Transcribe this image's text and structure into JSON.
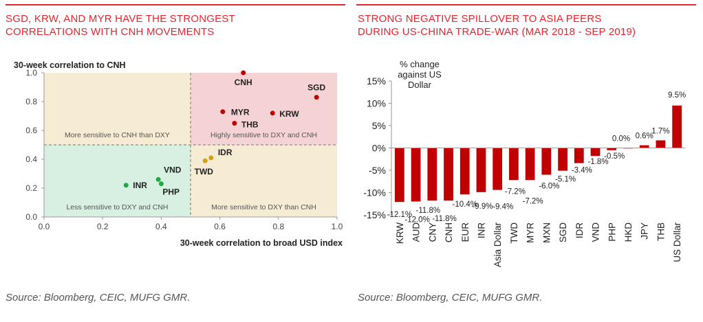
{
  "left": {
    "title_lines": [
      "SGD, KRW, AND MYR HAVE THE STRONGEST",
      "CORRELATIONS WITH CNH MOVEMENTS"
    ],
    "source": "Source: Bloomberg, CEIC, MUFG GMR."
  },
  "right": {
    "title_lines": [
      "STRONG NEGATIVE SPILLOVER TO ASIA PEERS",
      "DURING US-CHINA TRADE-WAR (MAR 2018 - SEP 2019)"
    ],
    "source": "Source: Bloomberg, CEIC, MUFG GMR."
  },
  "colors": {
    "accent": "#e3262d",
    "bar": "#c00000",
    "q_top_left": "#f6ebd3",
    "q_top_right": "#f5d3d4",
    "q_bottom_left": "#d7f0e1",
    "q_bottom_right": "#f6ebd3",
    "dot_red": "#c00000",
    "dot_green": "#22a845",
    "dot_gold": "#d4a017"
  },
  "chart_data": [
    {
      "type": "scatter",
      "ylabel": "30-week correlation to CNH",
      "xlabel": "30-week correlation to broad USD index",
      "xlim": [
        0,
        1
      ],
      "ylim": [
        0,
        1
      ],
      "x_ticks": [
        "0.0",
        "0.2",
        "0.4",
        "0.6",
        "0.8",
        "1.0"
      ],
      "y_ticks": [
        "0.0",
        "0.2",
        "0.4",
        "0.6",
        "0.8",
        "1.0"
      ],
      "threshold": 0.5,
      "quadrant_labels": {
        "top_left": "More sensitive to CNH than DXY",
        "top_right": "Highly sensitive to DXY and CNH",
        "bottom_left": "Less sensitive to DXY and CNH",
        "bottom_right": "More sensitive to DXY than CNH"
      },
      "points": [
        {
          "label": "CNH",
          "x": 0.68,
          "y": 1.0,
          "group": "red"
        },
        {
          "label": "SGD",
          "x": 0.93,
          "y": 0.83,
          "group": "red"
        },
        {
          "label": "MYR",
          "x": 0.61,
          "y": 0.73,
          "group": "red"
        },
        {
          "label": "KRW",
          "x": 0.78,
          "y": 0.72,
          "group": "red"
        },
        {
          "label": "THB",
          "x": 0.65,
          "y": 0.65,
          "group": "red"
        },
        {
          "label": "IDR",
          "x": 0.57,
          "y": 0.41,
          "group": "gold"
        },
        {
          "label": "TWD",
          "x": 0.55,
          "y": 0.39,
          "group": "gold"
        },
        {
          "label": "VND",
          "x": 0.39,
          "y": 0.26,
          "group": "green"
        },
        {
          "label": "INR",
          "x": 0.28,
          "y": 0.22,
          "group": "green"
        },
        {
          "label": "PHP",
          "x": 0.4,
          "y": 0.23,
          "group": "green"
        }
      ]
    },
    {
      "type": "bar",
      "ylabel": "% change against US Dollar",
      "ylabel_lines": [
        "% change",
        "against US",
        "Dollar"
      ],
      "ylim": [
        -15,
        15
      ],
      "y_ticks": [
        "15%",
        "10%",
        "5%",
        "0%",
        "-5%",
        "-10%",
        "-15%"
      ],
      "categories": [
        "KRW",
        "AUD",
        "CNY",
        "CNH",
        "EUR",
        "INR",
        "Asia Dollar",
        "TWD",
        "MYR",
        "MXN",
        "SGD",
        "IDR",
        "VND",
        "PHP",
        "HKD",
        "JPY",
        "THB",
        "US Dollar"
      ],
      "values": [
        -12.1,
        -12.0,
        -11.8,
        -11.8,
        -10.4,
        -9.9,
        -9.4,
        -7.2,
        -7.2,
        -6.0,
        -5.1,
        -3.4,
        -1.8,
        -0.5,
        0.0,
        0.6,
        1.7,
        9.5
      ],
      "value_labels": [
        "-12.1%",
        "-12.0%",
        "-11.8%",
        "-11.8%",
        "-10.4%",
        "-9.9%",
        "-9.4%",
        "-7.2%",
        "-7.2%",
        "-6.0%",
        "-5.1%",
        "-3.4%",
        "-1.8%",
        "-0.5%",
        "0.0%",
        "0.6%",
        "1.7%",
        "9.5%"
      ]
    }
  ]
}
